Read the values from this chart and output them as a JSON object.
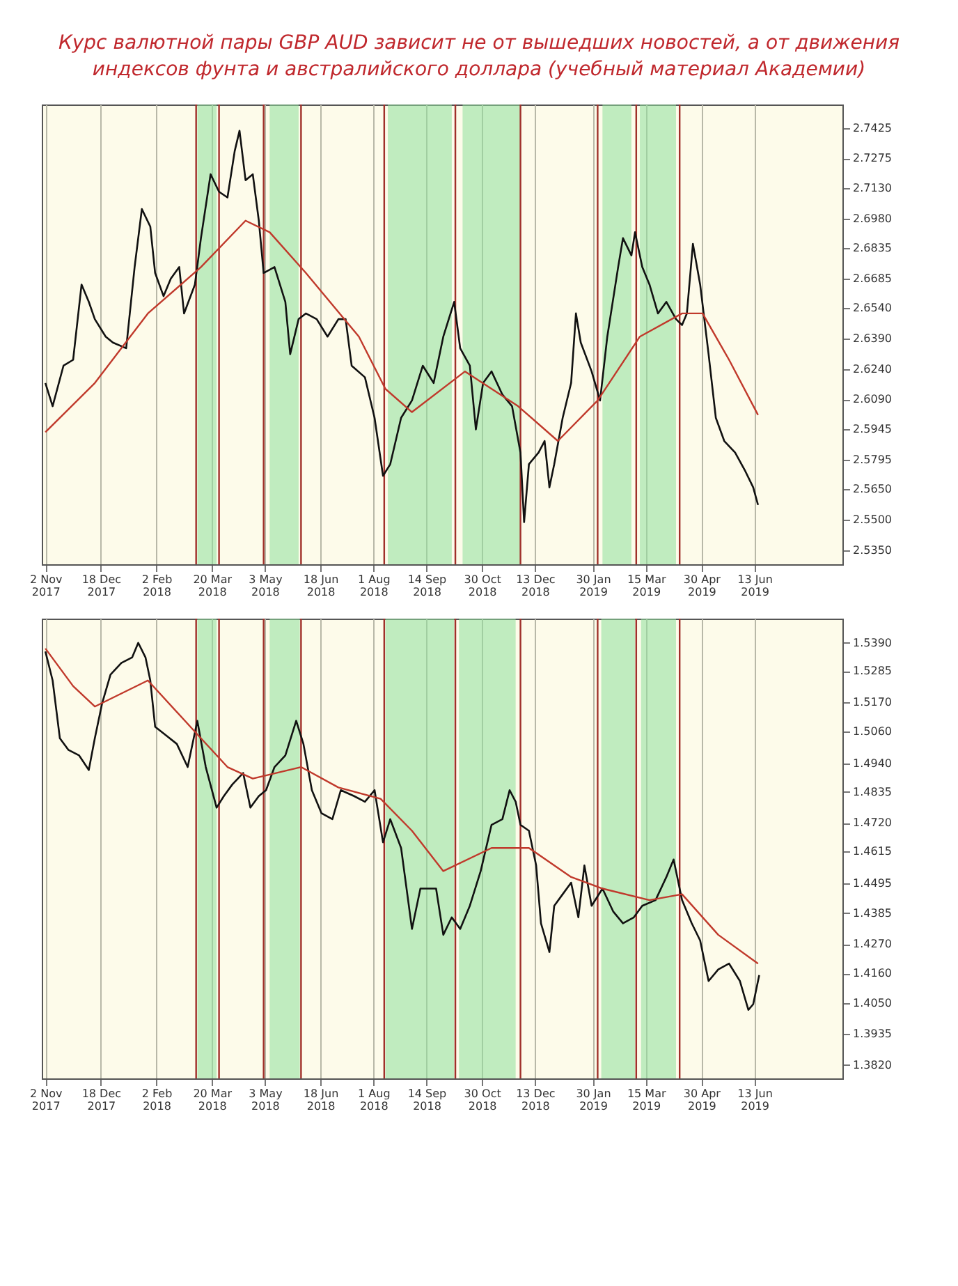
{
  "chart_data": [
    {
      "type": "line",
      "title": "Курс валютной пары GBP AUD зависит не от вышедших новостей, а от движения индексов фунта и австралийского доллара (учебный материал Академии)",
      "grid": "x",
      "xlim": [
        "2017-10-30",
        "2019-08-25"
      ],
      "ylim": [
        2.528,
        2.754
      ],
      "xticks": [
        {
          "value": "2017-11-02",
          "label": "2 Nov 2017"
        },
        {
          "value": "2017-12-18",
          "label": "18 Dec 2017"
        },
        {
          "value": "2018-02-02",
          "label": "2 Feb 2018"
        },
        {
          "value": "2018-03-20",
          "label": "20 Mar 2018"
        },
        {
          "value": "2018-05-03",
          "label": "3 May 2018"
        },
        {
          "value": "2018-06-18",
          "label": "18 Jun 2018"
        },
        {
          "value": "2018-08-01",
          "label": "1 Aug 2018"
        },
        {
          "value": "2018-09-14",
          "label": "14 Sep 2018"
        },
        {
          "value": "2018-10-30",
          "label": "30 Oct 2018"
        },
        {
          "value": "2018-12-13",
          "label": "13 Dec 2018"
        },
        {
          "value": "2019-01-30",
          "label": "30 Jan 2019"
        },
        {
          "value": "2019-03-15",
          "label": "15 Mar 2019"
        },
        {
          "value": "2019-04-30",
          "label": "30 Apr 2019"
        },
        {
          "value": "2019-06-13",
          "label": "13 Jun 2019"
        }
      ],
      "yticks": [
        {
          "value": 2.535,
          "label": "2.5350"
        },
        {
          "value": 2.55,
          "label": "2.5500"
        },
        {
          "value": 2.565,
          "label": "2.5650"
        },
        {
          "value": 2.5795,
          "label": "2.5795"
        },
        {
          "value": 2.5945,
          "label": "2.5945"
        },
        {
          "value": 2.609,
          "label": "2.6090"
        },
        {
          "value": 2.624,
          "label": "2.6240"
        },
        {
          "value": 2.639,
          "label": "2.6390"
        },
        {
          "value": 2.654,
          "label": "2.6540"
        },
        {
          "value": 2.6685,
          "label": "2.6685"
        },
        {
          "value": 2.6835,
          "label": "2.6835"
        },
        {
          "value": 2.698,
          "label": "2.6980"
        },
        {
          "value": 2.713,
          "label": "2.7130"
        },
        {
          "value": 2.7275,
          "label": "2.7275"
        },
        {
          "value": 2.7425,
          "label": "2.7425"
        }
      ],
      "bands": [
        {
          "axis": "x",
          "from": "2018-03-08",
          "to": "2018-03-24",
          "color": "#8ee09a"
        },
        {
          "axis": "x",
          "from": "2018-05-07",
          "to": "2018-05-31",
          "color": "#8ee09a"
        },
        {
          "axis": "x",
          "from": "2018-08-13",
          "to": "2018-10-05",
          "color": "#8ee09a"
        },
        {
          "axis": "x",
          "from": "2018-10-14",
          "to": "2018-12-01",
          "color": "#8ee09a"
        },
        {
          "axis": "x",
          "from": "2019-02-07",
          "to": "2019-03-03",
          "color": "#8ee09a"
        },
        {
          "axis": "x",
          "from": "2019-03-10",
          "to": "2019-04-09",
          "color": "#8ee09a"
        }
      ],
      "ref_lines": [
        {
          "axis": "x",
          "value": "2018-03-07",
          "color": "#a0302a"
        },
        {
          "axis": "x",
          "value": "2018-03-26",
          "color": "#a0302a"
        },
        {
          "axis": "x",
          "value": "2018-05-02",
          "color": "#a0302a"
        },
        {
          "axis": "x",
          "value": "2018-06-02",
          "color": "#a0302a"
        },
        {
          "axis": "x",
          "value": "2018-08-10",
          "color": "#a0302a"
        },
        {
          "axis": "x",
          "value": "2018-10-08",
          "color": "#a0302a"
        },
        {
          "axis": "x",
          "value": "2018-12-01",
          "color": "#a0302a"
        },
        {
          "axis": "x",
          "value": "2019-02-03",
          "color": "#a0302a"
        },
        {
          "axis": "x",
          "value": "2019-03-07",
          "color": "#a0302a"
        },
        {
          "axis": "x",
          "value": "2019-04-12",
          "color": "#a0302a"
        }
      ],
      "series": [
        {
          "color": "#111111",
          "x": [
            "2017-11-02",
            "2017-11-08",
            "2017-11-17",
            "2017-11-25",
            "2017-12-02",
            "2017-12-08",
            "2017-12-13",
            "2017-12-22",
            "2017-12-28",
            "2018-01-08",
            "2018-01-15",
            "2018-01-21",
            "2018-01-28",
            "2018-02-01",
            "2018-02-08",
            "2018-02-14",
            "2018-02-21",
            "2018-02-25",
            "2018-03-06",
            "2018-03-11",
            "2018-03-19",
            "2018-03-26",
            "2018-04-02",
            "2018-04-08",
            "2018-04-12",
            "2018-04-17",
            "2018-04-23",
            "2018-04-28",
            "2018-05-02",
            "2018-05-11",
            "2018-05-20",
            "2018-05-24",
            "2018-05-31",
            "2018-06-06",
            "2018-06-15",
            "2018-06-24",
            "2018-07-03",
            "2018-07-09",
            "2018-07-14",
            "2018-07-25",
            "2018-08-02",
            "2018-08-09",
            "2018-08-15",
            "2018-08-24",
            "2018-09-02",
            "2018-09-11",
            "2018-09-20",
            "2018-09-28",
            "2018-10-07",
            "2018-10-12",
            "2018-10-20",
            "2018-10-25",
            "2018-10-31",
            "2018-11-07",
            "2018-11-16",
            "2018-11-24",
            "2018-12-01",
            "2018-12-04",
            "2018-12-08",
            "2018-12-16",
            "2018-12-21",
            "2018-12-25",
            "2018-12-29",
            "2019-01-05",
            "2019-01-12",
            "2019-01-16",
            "2019-01-20",
            "2019-01-29",
            "2019-02-05",
            "2019-02-11",
            "2019-02-20",
            "2019-02-24",
            "2019-03-03",
            "2019-03-06",
            "2019-03-12",
            "2019-03-18",
            "2019-03-25",
            "2019-04-01",
            "2019-04-09",
            "2019-04-14",
            "2019-04-18",
            "2019-04-23",
            "2019-04-29",
            "2019-05-06",
            "2019-05-12",
            "2019-05-19",
            "2019-05-28",
            "2019-06-05",
            "2019-06-12",
            "2019-06-16"
          ],
          "values": [
            2.6171,
            2.6057,
            2.6256,
            2.6285,
            2.6655,
            2.657,
            2.6485,
            2.6399,
            2.637,
            2.6342,
            2.6741,
            2.7026,
            2.694,
            2.6712,
            2.6598,
            2.6684,
            2.6741,
            2.6513,
            2.6655,
            2.6883,
            2.7197,
            2.7111,
            2.7083,
            2.7311,
            2.7411,
            2.7168,
            2.7197,
            2.6969,
            2.6712,
            2.6741,
            2.657,
            2.6313,
            2.6485,
            2.6513,
            2.6485,
            2.6399,
            2.6485,
            2.6485,
            2.6256,
            2.6199,
            2.6,
            2.5715,
            2.5772,
            2.6,
            2.6085,
            2.6256,
            2.6171,
            2.6399,
            2.657,
            2.6342,
            2.6256,
            2.5943,
            2.6171,
            2.6228,
            2.6114,
            2.6057,
            2.5829,
            2.5487,
            2.5772,
            2.5829,
            2.5886,
            2.5658,
            2.5772,
            2.6,
            2.6171,
            2.6513,
            2.637,
            2.6228,
            2.6085,
            2.6399,
            2.6741,
            2.6883,
            2.6798,
            2.6912,
            2.6741,
            2.6655,
            2.6513,
            2.657,
            2.6485,
            2.6456,
            2.6513,
            2.6855,
            2.6655,
            2.6313,
            2.6,
            2.5886,
            2.5829,
            2.5743,
            2.5658,
            2.5572
          ]
        },
        {
          "color": "#c0392b",
          "x": [
            "2017-11-02",
            "2017-12-13",
            "2018-01-26",
            "2018-03-11",
            "2018-04-17",
            "2018-05-07",
            "2018-06-06",
            "2018-07-20",
            "2018-08-11",
            "2018-09-02",
            "2018-10-16",
            "2018-11-29",
            "2019-01-01",
            "2019-02-03",
            "2019-03-10",
            "2019-04-14",
            "2019-05-01",
            "2019-05-23",
            "2019-06-16"
          ],
          "values": [
            2.5929,
            2.6171,
            2.6513,
            2.6741,
            2.6969,
            2.6912,
            2.6712,
            2.6399,
            2.6142,
            2.6028,
            2.6228,
            2.6057,
            2.5886,
            2.6085,
            2.6399,
            2.6513,
            2.6513,
            2.6285,
            2.6014
          ]
        }
      ]
    },
    {
      "type": "line",
      "grid": "x",
      "xlim": [
        "2017-10-30",
        "2019-08-25"
      ],
      "ylim": [
        1.377,
        1.548
      ],
      "xticks": [
        {
          "value": "2017-11-02",
          "label": "2 Nov 2017"
        },
        {
          "value": "2017-12-18",
          "label": "18 Dec 2017"
        },
        {
          "value": "2018-02-02",
          "label": "2 Feb 2018"
        },
        {
          "value": "2018-03-20",
          "label": "20 Mar 2018"
        },
        {
          "value": "2018-05-03",
          "label": "3 May 2018"
        },
        {
          "value": "2018-06-18",
          "label": "18 Jun 2018"
        },
        {
          "value": "2018-08-01",
          "label": "1 Aug 2018"
        },
        {
          "value": "2018-09-14",
          "label": "14 Sep 2018"
        },
        {
          "value": "2018-10-30",
          "label": "30 Oct 2018"
        },
        {
          "value": "2018-12-13",
          "label": "13 Dec 2018"
        },
        {
          "value": "2019-01-30",
          "label": "30 Jan 2019"
        },
        {
          "value": "2019-03-15",
          "label": "15 Mar 2019"
        },
        {
          "value": "2019-04-30",
          "label": "30 Apr 2019"
        },
        {
          "value": "2019-06-13",
          "label": "13 Jun 2019"
        }
      ],
      "yticks": [
        {
          "value": 1.382,
          "label": "1.3820"
        },
        {
          "value": 1.3935,
          "label": "1.3935"
        },
        {
          "value": 1.405,
          "label": "1.4050"
        },
        {
          "value": 1.416,
          "label": "1.4160"
        },
        {
          "value": 1.427,
          "label": "1.4270"
        },
        {
          "value": 1.4385,
          "label": "1.4385"
        },
        {
          "value": 1.4495,
          "label": "1.4495"
        },
        {
          "value": 1.4615,
          "label": "1.4615"
        },
        {
          "value": 1.472,
          "label": "1.4720"
        },
        {
          "value": 1.4835,
          "label": "1.4835"
        },
        {
          "value": 1.494,
          "label": "1.4940"
        },
        {
          "value": 1.506,
          "label": "1.5060"
        },
        {
          "value": 1.517,
          "label": "1.5170"
        },
        {
          "value": 1.5285,
          "label": "1.5285"
        },
        {
          "value": 1.539,
          "label": "1.5390"
        }
      ],
      "bands": [
        {
          "axis": "x",
          "from": "2018-03-08",
          "to": "2018-03-24",
          "color": "#8ee09a"
        },
        {
          "axis": "x",
          "from": "2018-05-07",
          "to": "2018-06-01",
          "color": "#8ee09a"
        },
        {
          "axis": "x",
          "from": "2018-08-11",
          "to": "2018-10-07",
          "color": "#8ee09a"
        },
        {
          "axis": "x",
          "from": "2018-10-11",
          "to": "2018-11-27",
          "color": "#8ee09a"
        },
        {
          "axis": "x",
          "from": "2019-02-06",
          "to": "2019-03-06",
          "color": "#8ee09a"
        },
        {
          "axis": "x",
          "from": "2019-03-11",
          "to": "2019-04-09",
          "color": "#8ee09a"
        }
      ],
      "ref_lines": [
        {
          "axis": "x",
          "value": "2018-03-07",
          "color": "#a0302a"
        },
        {
          "axis": "x",
          "value": "2018-03-26",
          "color": "#a0302a"
        },
        {
          "axis": "x",
          "value": "2018-05-02",
          "color": "#a0302a"
        },
        {
          "axis": "x",
          "value": "2018-06-02",
          "color": "#a0302a"
        },
        {
          "axis": "x",
          "value": "2018-08-10",
          "color": "#a0302a"
        },
        {
          "axis": "x",
          "value": "2018-10-08",
          "color": "#a0302a"
        },
        {
          "axis": "x",
          "value": "2018-12-01",
          "color": "#a0302a"
        },
        {
          "axis": "x",
          "value": "2019-02-03",
          "color": "#a0302a"
        },
        {
          "axis": "x",
          "value": "2019-03-07",
          "color": "#a0302a"
        },
        {
          "axis": "x",
          "value": "2019-04-12",
          "color": "#a0302a"
        }
      ],
      "series": [
        {
          "color": "#111111",
          "x": [
            "2017-11-02",
            "2017-11-08",
            "2017-11-14",
            "2017-11-21",
            "2017-11-30",
            "2017-12-08",
            "2017-12-13",
            "2017-12-19",
            "2017-12-26",
            "2018-01-04",
            "2018-01-13",
            "2018-01-18",
            "2018-01-24",
            "2018-01-28",
            "2018-02-01",
            "2018-02-10",
            "2018-02-19",
            "2018-02-28",
            "2018-03-08",
            "2018-03-15",
            "2018-03-24",
            "2018-03-30",
            "2018-04-06",
            "2018-04-15",
            "2018-04-21",
            "2018-04-28",
            "2018-05-04",
            "2018-05-11",
            "2018-05-20",
            "2018-05-29",
            "2018-06-04",
            "2018-06-11",
            "2018-06-19",
            "2018-06-28",
            "2018-07-05",
            "2018-07-16",
            "2018-07-25",
            "2018-08-02",
            "2018-08-09",
            "2018-08-15",
            "2018-08-24",
            "2018-09-02",
            "2018-09-09",
            "2018-09-15",
            "2018-09-22",
            "2018-09-28",
            "2018-10-05",
            "2018-10-12",
            "2018-10-20",
            "2018-10-29",
            "2018-11-07",
            "2018-11-16",
            "2018-11-22",
            "2018-11-27",
            "2018-12-01",
            "2018-12-08",
            "2018-12-14",
            "2018-12-18",
            "2018-12-25",
            "2018-12-29",
            "2019-01-05",
            "2019-01-12",
            "2019-01-18",
            "2019-01-23",
            "2019-01-29",
            "2019-02-07",
            "2019-02-16",
            "2019-02-24",
            "2019-03-05",
            "2019-03-12",
            "2019-03-23",
            "2019-04-01",
            "2019-04-07",
            "2019-04-14",
            "2019-04-22",
            "2019-04-29",
            "2019-05-06",
            "2019-05-14",
            "2019-05-23",
            "2019-06-01",
            "2019-06-08",
            "2019-06-12",
            "2019-06-17"
          ],
          "values": [
            1.5358,
            1.525,
            1.5035,
            1.4992,
            1.4971,
            1.4917,
            1.5035,
            1.5164,
            1.5272,
            1.5315,
            1.5336,
            1.539,
            1.5336,
            1.525,
            1.5078,
            1.5046,
            1.5014,
            1.4928,
            1.51,
            1.4928,
            1.4777,
            1.482,
            1.4863,
            1.4906,
            1.4777,
            1.482,
            1.4842,
            1.4928,
            1.4971,
            1.51,
            1.5014,
            1.4842,
            1.4756,
            1.4734,
            1.4842,
            1.482,
            1.4799,
            1.4842,
            1.4648,
            1.4734,
            1.4627,
            1.4326,
            1.4476,
            1.4476,
            1.4476,
            1.4304,
            1.4369,
            1.4326,
            1.4412,
            1.4541,
            1.4713,
            1.4734,
            1.4842,
            1.4799,
            1.4713,
            1.4691,
            1.4562,
            1.4347,
            1.424,
            1.4412,
            1.4455,
            1.4498,
            1.4369,
            1.4562,
            1.4412,
            1.4476,
            1.439,
            1.4347,
            1.4369,
            1.4412,
            1.4433,
            1.4519,
            1.4584,
            1.4433,
            1.4347,
            1.4283,
            1.4132,
            1.4175,
            1.4197,
            1.4132,
            1.4025,
            1.4046,
            1.4154
          ]
        },
        {
          "color": "#c0392b",
          "x": [
            "2017-11-02",
            "2017-11-25",
            "2017-12-13",
            "2018-01-26",
            "2018-03-11",
            "2018-04-02",
            "2018-04-23",
            "2018-06-02",
            "2018-07-03",
            "2018-08-07",
            "2018-09-02",
            "2018-09-28",
            "2018-11-07",
            "2018-12-08",
            "2019-01-12",
            "2019-02-07",
            "2019-03-18",
            "2019-04-14",
            "2019-05-14",
            "2019-06-16"
          ],
          "values": [
            1.5369,
            1.5229,
            1.5153,
            1.525,
            1.5035,
            1.4928,
            1.4885,
            1.4928,
            1.4852,
            1.481,
            1.4691,
            1.4541,
            1.4627,
            1.4627,
            1.4519,
            1.4476,
            1.4433,
            1.4455,
            1.4304,
            1.4197
          ]
        }
      ]
    }
  ]
}
